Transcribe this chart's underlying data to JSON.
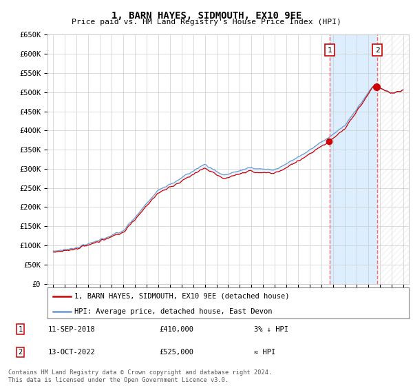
{
  "title": "1, BARN HAYES, SIDMOUTH, EX10 9EE",
  "subtitle": "Price paid vs. HM Land Registry's House Price Index (HPI)",
  "ylim": [
    0,
    650000
  ],
  "yticks": [
    0,
    50000,
    100000,
    150000,
    200000,
    250000,
    300000,
    350000,
    400000,
    450000,
    500000,
    550000,
    600000,
    650000
  ],
  "ytick_labels": [
    "£0",
    "£50K",
    "£100K",
    "£150K",
    "£200K",
    "£250K",
    "£300K",
    "£350K",
    "£400K",
    "£450K",
    "£500K",
    "£550K",
    "£600K",
    "£650K"
  ],
  "xlim_start": 1994.5,
  "xlim_end": 2025.5,
  "transaction1_x": 2018.7,
  "transaction1_price": 410000,
  "transaction1_label": "1",
  "transaction1_date": "11-SEP-2018",
  "transaction1_note": "3% ↓ HPI",
  "transaction2_x": 2022.79,
  "transaction2_price": 525000,
  "transaction2_label": "2",
  "transaction2_date": "13-OCT-2022",
  "transaction2_note": "≈ HPI",
  "red_line_color": "#cc0000",
  "blue_line_color": "#6699cc",
  "shade_color": "#ddeeff",
  "dashed_line_color": "#ff6666",
  "background_color": "#ffffff",
  "grid_color": "#cccccc",
  "legend_line1": "1, BARN HAYES, SIDMOUTH, EX10 9EE (detached house)",
  "legend_line2": "HPI: Average price, detached house, East Devon",
  "copyright_text": "Contains HM Land Registry data © Crown copyright and database right 2024.\nThis data is licensed under the Open Government Licence v3.0."
}
